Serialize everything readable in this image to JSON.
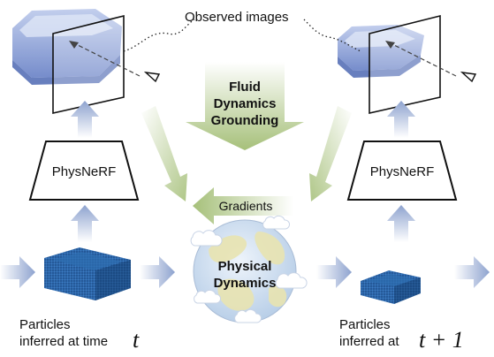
{
  "labels": {
    "observed_images": "Observed images",
    "fluid_dynamics_grounding": [
      "Fluid",
      "Dynamics",
      "Grounding"
    ],
    "gradients": "Gradients",
    "physnerf_left": "PhysNeRF",
    "physnerf_right": "PhysNeRF",
    "physical_dynamics": [
      "Physical",
      "Dynamics"
    ],
    "particles_left": [
      "Particles",
      "inferred at time"
    ],
    "particles_left_var": "t",
    "particles_right": [
      "Particles",
      "inferred at"
    ],
    "particles_right_var": "t + 1"
  },
  "colors": {
    "blue_arrow": "#8ea3cf",
    "green_arrow": "#a6c07a",
    "fluid_blue": "#6d86c9",
    "particle_blue": "#1f5fa0",
    "earth_ocean": "#cfe0f2",
    "earth_land": "#e8e3b0"
  }
}
